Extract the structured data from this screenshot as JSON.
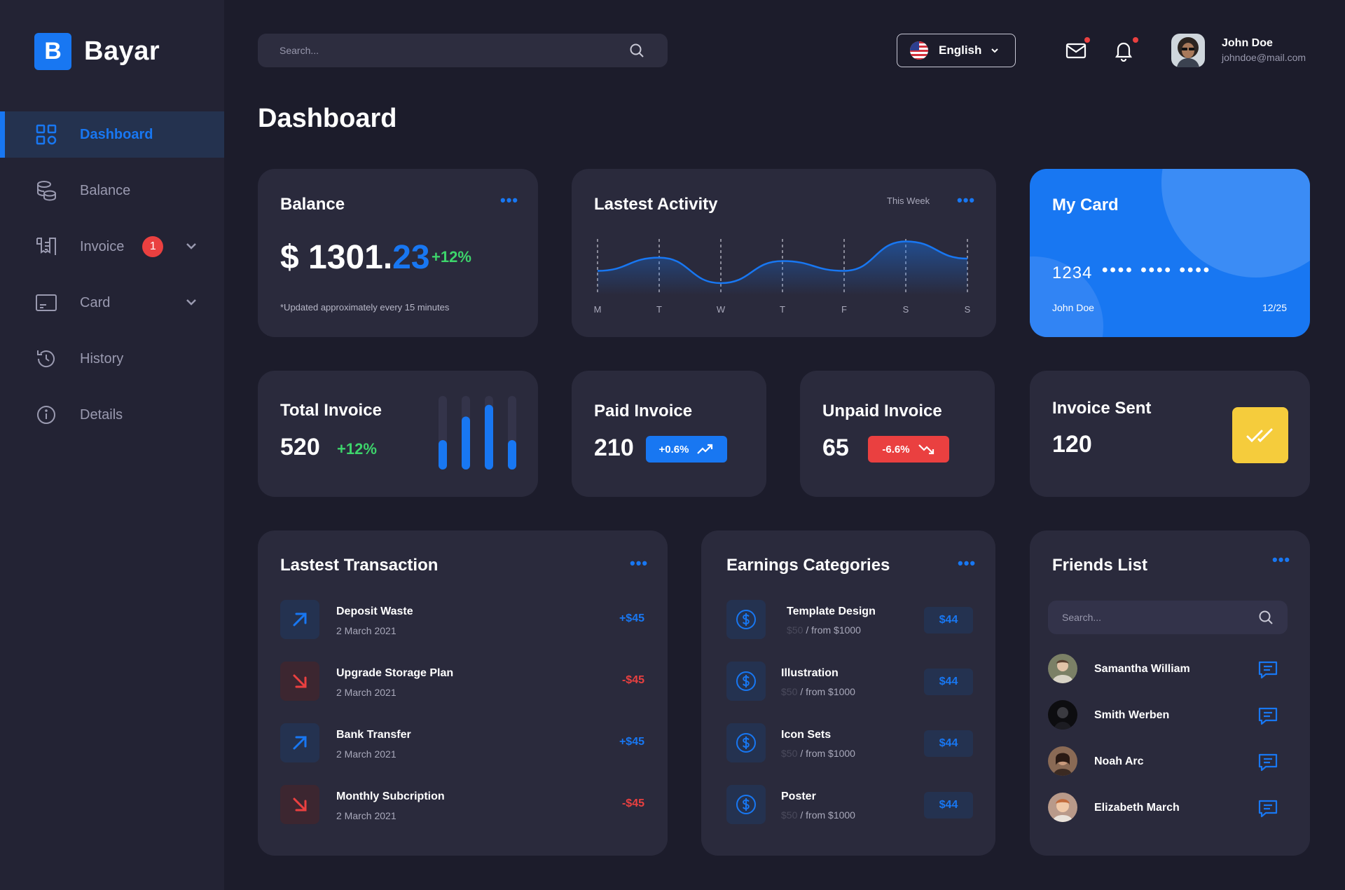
{
  "brand": {
    "logo_letter": "B",
    "name": "Bayar"
  },
  "sidebar": {
    "items": [
      {
        "label": "Dashboard",
        "icon": "dashboard-grid-icon"
      },
      {
        "label": "Balance",
        "icon": "coins-icon"
      },
      {
        "label": "Invoice",
        "icon": "invoice-icon",
        "badge": "1"
      },
      {
        "label": "Card",
        "icon": "card-icon"
      },
      {
        "label": "History",
        "icon": "history-icon"
      },
      {
        "label": "Details",
        "icon": "info-icon"
      }
    ]
  },
  "header": {
    "search_placeholder": "Search...",
    "language": "English",
    "user": {
      "name": "John Doe",
      "email": "johndoe@mail.com"
    }
  },
  "page_title": "Dashboard",
  "balance": {
    "title": "Balance",
    "currency": "$",
    "amount_whole": "1301.",
    "amount_cents": "23",
    "change": "+12%",
    "note": "*Updated approximately every 15 minutes"
  },
  "activity": {
    "title": "Lastest Activity",
    "period": "This Week",
    "days": [
      "M",
      "T",
      "W",
      "T",
      "F",
      "S",
      "S"
    ],
    "values": [
      0.35,
      0.62,
      0.1,
      0.55,
      0.35,
      0.95,
      0.6
    ]
  },
  "my_card": {
    "title": "My Card",
    "number_start": "1234",
    "mask": "•••• •••• ••••",
    "holder": "John Doe",
    "expiry": "12/25"
  },
  "stats": {
    "total_invoice": {
      "title": "Total Invoice",
      "value": "520",
      "change": "+12%",
      "bars": [
        0.4,
        0.72,
        0.88,
        0.4
      ]
    },
    "paid_invoice": {
      "title": "Paid Invoice",
      "value": "210",
      "change": "+0.6%"
    },
    "unpaid_invoice": {
      "title": "Unpaid Invoice",
      "value": "65",
      "change": "-6.6%"
    },
    "invoice_sent": {
      "title": "Invoice Sent",
      "value": "120"
    }
  },
  "transactions": {
    "title": "Lastest Transaction",
    "items": [
      {
        "name": "Deposit Waste",
        "date": "2 March 2021",
        "amount": "+$45",
        "direction": "in"
      },
      {
        "name": "Upgrade Storage Plan",
        "date": "2 March 2021",
        "amount": "-$45",
        "direction": "out"
      },
      {
        "name": "Bank Transfer",
        "date": "2 March 2021",
        "amount": "+$45",
        "direction": "in"
      },
      {
        "name": "Monthly Subcription",
        "date": "2 March 2021",
        "amount": "-$45",
        "direction": "out"
      }
    ]
  },
  "earnings": {
    "title": "Earnings Categories",
    "items": [
      {
        "name": "Template Design",
        "faint": "$50",
        "sub": "/ from $1000",
        "amount": "$44"
      },
      {
        "name": "Illustration",
        "faint": "$50",
        "sub": "/ from $1000",
        "amount": "$44"
      },
      {
        "name": "Icon Sets",
        "faint": "$50",
        "sub": "/ from $1000",
        "amount": "$44"
      },
      {
        "name": "Poster",
        "faint": "$50",
        "sub": "/ from $1000",
        "amount": "$44"
      }
    ]
  },
  "friends": {
    "title": "Friends List",
    "search_placeholder": "Search...",
    "items": [
      {
        "name": "Samantha William"
      },
      {
        "name": "Smith Werben"
      },
      {
        "name": "Noah Arc"
      },
      {
        "name": "Elizabeth March"
      }
    ]
  },
  "colors": {
    "accent": "#1877f2",
    "positive": "#3dd46b",
    "negative": "#ea4040",
    "highlight": "#f5cc3c"
  }
}
